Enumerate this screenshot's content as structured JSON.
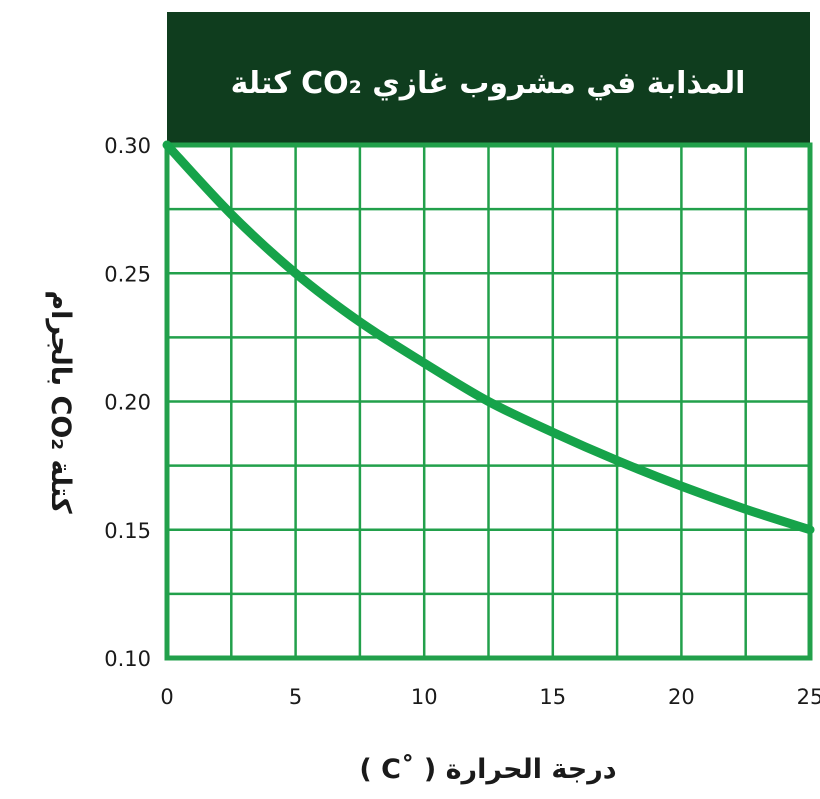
{
  "chart_data": {
    "type": "line",
    "title": "كتلة CO₂ المذابة في مشروب غازي",
    "xlabel": "درجة الحرارة ( ˚C )",
    "ylabel": "كتلة CO₂ بالجرام",
    "x_ticks": [
      "0",
      "5",
      "10",
      "15",
      "20",
      "25"
    ],
    "y_ticks": [
      "0.30",
      "0.25",
      "0.20",
      "0.15",
      "0.10"
    ],
    "xlim": [
      0,
      25
    ],
    "ylim": [
      0.1,
      0.3
    ],
    "grid": true,
    "series": [
      {
        "x": [
          0,
          2.5,
          5,
          7.5,
          10,
          12.5,
          15,
          17.5,
          20,
          22.5,
          25
        ],
        "y": [
          0.3,
          0.273,
          0.25,
          0.231,
          0.215,
          0.2,
          0.188,
          0.177,
          0.167,
          0.158,
          0.15
        ]
      }
    ],
    "colors": {
      "line": "#16a34a",
      "grid": "#22a04b",
      "title_bg": "#0f3d1e"
    }
  }
}
